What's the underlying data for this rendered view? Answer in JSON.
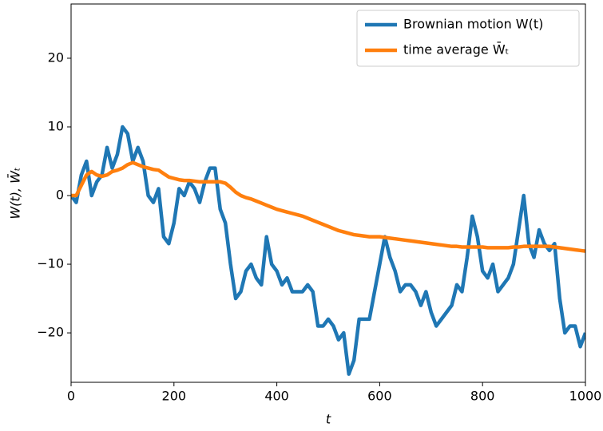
{
  "chart_data": {
    "type": "line",
    "xlabel": "t",
    "ylabel": "W(t), W̄ₜ",
    "x": [
      0,
      10,
      20,
      30,
      40,
      50,
      60,
      70,
      80,
      90,
      100,
      110,
      120,
      130,
      140,
      150,
      160,
      170,
      180,
      190,
      200,
      210,
      220,
      230,
      240,
      250,
      260,
      270,
      280,
      290,
      300,
      310,
      320,
      330,
      340,
      350,
      360,
      370,
      380,
      390,
      400,
      410,
      420,
      430,
      440,
      450,
      460,
      470,
      480,
      490,
      500,
      510,
      520,
      530,
      540,
      550,
      560,
      570,
      580,
      590,
      600,
      610,
      620,
      630,
      640,
      650,
      660,
      670,
      680,
      690,
      700,
      710,
      720,
      730,
      740,
      750,
      760,
      770,
      780,
      790,
      800,
      810,
      820,
      830,
      840,
      850,
      860,
      870,
      880,
      890,
      900,
      910,
      920,
      930,
      940,
      950,
      960,
      970,
      980,
      990,
      1000
    ],
    "series": [
      {
        "name": "Brownian motion W(t)",
        "color": "#1f77b4",
        "values": [
          0,
          -1,
          3,
          5,
          0,
          2,
          3,
          7,
          4,
          6,
          10,
          9,
          5,
          7,
          5,
          0,
          -1,
          1,
          -6,
          -7,
          -4,
          1,
          0,
          2,
          1,
          -1,
          2,
          4,
          4,
          -2,
          -4,
          -10,
          -15,
          -14,
          -11,
          -10,
          -12,
          -13,
          -6,
          -10,
          -11,
          -13,
          -12,
          -14,
          -14,
          -14,
          -13,
          -14,
          -19,
          -19,
          -18,
          -19,
          -21,
          -20,
          -26,
          -24,
          -18,
          -18,
          -18,
          -14,
          -10,
          -6,
          -9,
          -11,
          -14,
          -13,
          -13,
          -14,
          -16,
          -14,
          -17,
          -19,
          -18,
          -17,
          -16,
          -13,
          -14,
          -9,
          -3,
          -6,
          -11,
          -12,
          -10,
          -14,
          -13,
          -12,
          -10,
          -5,
          0,
          -7,
          -9,
          -5,
          -7,
          -8,
          -7,
          -15,
          -20,
          -19,
          -19,
          -22,
          -20
        ]
      },
      {
        "name": "time average W̄ₜ",
        "color": "#ff7f0e",
        "values": [
          0,
          0,
          1.5,
          3,
          3.5,
          3,
          2.8,
          3,
          3.5,
          3.7,
          4,
          4.5,
          4.8,
          4.5,
          4.2,
          4,
          3.8,
          3.7,
          3.2,
          2.7,
          2.5,
          2.3,
          2.2,
          2.2,
          2.1,
          2,
          2,
          2,
          2,
          2,
          1.8,
          1.2,
          0.5,
          0,
          -0.3,
          -0.5,
          -0.8,
          -1.1,
          -1.4,
          -1.7,
          -2,
          -2.2,
          -2.4,
          -2.6,
          -2.8,
          -3,
          -3.3,
          -3.6,
          -3.9,
          -4.2,
          -4.5,
          -4.8,
          -5.1,
          -5.3,
          -5.5,
          -5.7,
          -5.8,
          -5.9,
          -6,
          -6,
          -6,
          -6.1,
          -6.2,
          -6.3,
          -6.4,
          -6.5,
          -6.6,
          -6.7,
          -6.8,
          -6.9,
          -7,
          -7.1,
          -7.2,
          -7.3,
          -7.4,
          -7.4,
          -7.5,
          -7.5,
          -7.5,
          -7.5,
          -7.5,
          -7.6,
          -7.6,
          -7.6,
          -7.6,
          -7.6,
          -7.5,
          -7.5,
          -7.4,
          -7.4,
          -7.4,
          -7.4,
          -7.4,
          -7.4,
          -7.5,
          -7.6,
          -7.7,
          -7.8,
          -7.9,
          -8,
          -8.1
        ]
      }
    ],
    "xlim": [
      0,
      1000
    ],
    "xticks": [
      0,
      200,
      400,
      600,
      800,
      1000
    ],
    "ylim": [
      -27.2,
      27.9
    ],
    "yticks": [
      {
        "value": -20,
        "label": "−20"
      },
      {
        "value": -10,
        "label": "−10"
      },
      0,
      10,
      20
    ],
    "legend": "upper right",
    "grid": false
  }
}
